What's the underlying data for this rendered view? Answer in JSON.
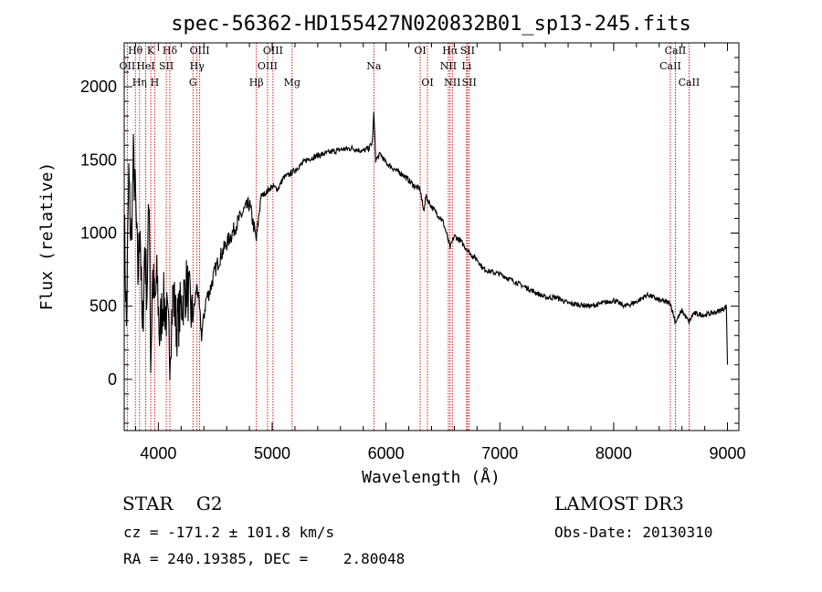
{
  "chart_data": {
    "type": "line",
    "title": "spec-56362-HD155427N020832B01_sp13-245.fits",
    "xlabel": "Wavelength (Å)",
    "ylabel": "Flux (relative)",
    "xlim": [
      3700,
      9100
    ],
    "ylim": [
      -350,
      2300
    ],
    "xticks": [
      4000,
      5000,
      6000,
      7000,
      8000,
      9000
    ],
    "yticks": [
      0,
      500,
      1000,
      1500,
      2000
    ],
    "series": [
      {
        "x": [
          3700,
          3720,
          3740,
          3760,
          3780,
          3800,
          3820,
          3840,
          3860,
          3880,
          3900,
          3920,
          3933,
          3950,
          3968,
          3990,
          4010,
          4040,
          4070,
          4101,
          4130,
          4160,
          4200,
          4250,
          4300,
          4340,
          4380,
          4420,
          4450,
          4500,
          4550,
          4600,
          4650,
          4700,
          4750,
          4800,
          4861,
          4900,
          4950,
          5000,
          5050,
          5100,
          5150,
          5200,
          5300,
          5400,
          5500,
          5600,
          5700,
          5800,
          5850,
          5880,
          5893,
          5910,
          5950,
          6000,
          6050,
          6100,
          6150,
          6200,
          6250,
          6300,
          6330,
          6350,
          6400,
          6450,
          6500,
          6530,
          6563,
          6600,
          6650,
          6700,
          6750,
          6800,
          6850,
          6900,
          7000,
          7100,
          7200,
          7300,
          7400,
          7500,
          7600,
          7700,
          7800,
          7900,
          8000,
          8100,
          8200,
          8300,
          8400,
          8498,
          8542,
          8600,
          8662,
          8700,
          8800,
          8900,
          8960,
          8990,
          9000
        ],
        "y": [
          1100,
          350,
          1400,
          900,
          1500,
          1200,
          700,
          1100,
          250,
          900,
          600,
          1300,
          100,
          700,
          500,
          700,
          300,
          550,
          450,
          200,
          600,
          350,
          500,
          650,
          400,
          650,
          300,
          550,
          600,
          750,
          850,
          930,
          1000,
          1080,
          1150,
          1200,
          950,
          1250,
          1280,
          1320,
          1300,
          1380,
          1400,
          1430,
          1500,
          1530,
          1550,
          1570,
          1580,
          1560,
          1580,
          1620,
          1820,
          1500,
          1540,
          1480,
          1450,
          1420,
          1400,
          1360,
          1320,
          1300,
          1150,
          1250,
          1180,
          1130,
          1080,
          1000,
          900,
          980,
          950,
          900,
          850,
          820,
          760,
          740,
          720,
          680,
          640,
          600,
          560,
          560,
          520,
          510,
          500,
          520,
          540,
          500,
          530,
          580,
          540,
          520,
          390,
          470,
          390,
          450,
          440,
          460,
          480,
          500,
          100
        ]
      }
    ],
    "spectral_lines": [
      {
        "label": "Hθ",
        "x": 3798,
        "row": 0
      },
      {
        "label": "K",
        "x": 3933,
        "row": 0
      },
      {
        "label": "Hδ",
        "x": 4101,
        "row": 0
      },
      {
        "label": "OIII",
        "x": 4363,
        "row": 0
      },
      {
        "label": "OIII",
        "x": 5007,
        "row": 0
      },
      {
        "label": "OI",
        "x": 6300,
        "row": 0
      },
      {
        "label": "Hα",
        "x": 6563,
        "row": 0
      },
      {
        "label": "SII",
        "x": 6716,
        "row": 0
      },
      {
        "label": "CaII",
        "x": 8542,
        "row": 0
      },
      {
        "label": "OII",
        "x": 3727,
        "row": 1
      },
      {
        "label": "HeI",
        "x": 3889,
        "row": 1
      },
      {
        "label": "SII",
        "x": 4070,
        "row": 1
      },
      {
        "label": "Hγ",
        "x": 4340,
        "row": 1
      },
      {
        "label": "OIII",
        "x": 4959,
        "row": 1
      },
      {
        "label": "Na",
        "x": 5893,
        "row": 1
      },
      {
        "label": "NII",
        "x": 6548,
        "row": 1
      },
      {
        "label": "Li",
        "x": 6708,
        "row": 1
      },
      {
        "label": "CaII",
        "x": 8498,
        "row": 1
      },
      {
        "label": "Hη",
        "x": 3835,
        "row": 2
      },
      {
        "label": "H",
        "x": 3968,
        "row": 2
      },
      {
        "label": "G",
        "x": 4304,
        "row": 2
      },
      {
        "label": "Hβ",
        "x": 4861,
        "row": 2
      },
      {
        "label": "Mg",
        "x": 5175,
        "row": 2
      },
      {
        "label": "OI",
        "x": 6364,
        "row": 2
      },
      {
        "label": "NII",
        "x": 6583,
        "row": 2
      },
      {
        "label": "SII",
        "x": 6731,
        "row": 2
      },
      {
        "label": "CaII",
        "x": 8662,
        "row": 2
      }
    ],
    "line_marker_color": "#cc0000",
    "spectrum_color": "#000000"
  },
  "info": {
    "class_line": "STAR    G2",
    "survey": "LAMOST DR3",
    "cz_line": "cz = -171.2 ± 101.8 km/s",
    "obs_date": "Obs-Date: 20130310",
    "radec_line": "RA = 240.19385, DEC =    2.80048"
  }
}
